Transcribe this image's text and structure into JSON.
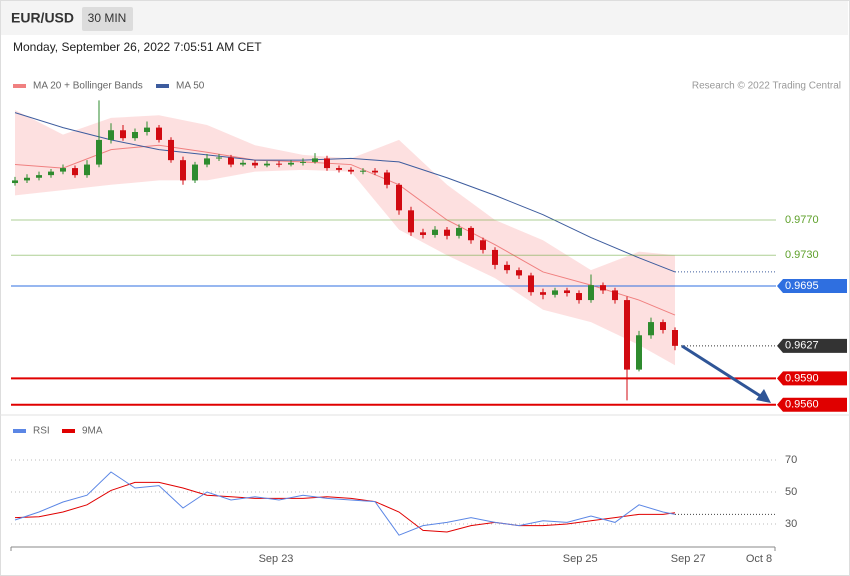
{
  "header": {
    "symbol": "EUR/USD",
    "interval": "30 MIN",
    "timestamp": "Monday, September 26, 2022 7:05:51 AM CET"
  },
  "chart_data": [
    {
      "type": "candlestick",
      "source": "Research © 2022 Trading Central",
      "xlim": [
        -0.5,
        63.5
      ],
      "ylim": [
        0.955,
        0.9915
      ],
      "up_color": "#2e8b2e",
      "down_color": "#d10a11",
      "open": [
        0.9812,
        0.9815,
        0.9818,
        0.9821,
        0.9825,
        0.9829,
        0.9821,
        0.9833,
        0.9861,
        0.9872,
        0.9863,
        0.987,
        0.9875,
        0.9861,
        0.9838,
        0.9815,
        0.9833,
        0.984,
        0.9841,
        0.9833,
        0.9835,
        0.9832,
        0.9834,
        0.9833,
        0.9835,
        0.9836,
        0.984,
        0.9829,
        0.9827,
        0.9825,
        0.9826,
        0.9824,
        0.981,
        0.9781,
        0.9756,
        0.9753,
        0.9759,
        0.9752,
        0.9761,
        0.9747,
        0.9736,
        0.9719,
        0.9713,
        0.9707,
        0.9688,
        0.9685,
        0.969,
        0.9687,
        0.9679,
        0.9696,
        0.969,
        0.9679,
        0.96,
        0.9639,
        0.9654,
        0.9645
      ],
      "high": [
        0.9819,
        0.9822,
        0.9825,
        0.9828,
        0.9833,
        0.9832,
        0.9838,
        0.9906,
        0.988,
        0.9878,
        0.9874,
        0.9882,
        0.9878,
        0.9864,
        0.9842,
        0.9836,
        0.9845,
        0.9845,
        0.9844,
        0.9838,
        0.9838,
        0.9837,
        0.9837,
        0.9838,
        0.984,
        0.9846,
        0.9843,
        0.9832,
        0.983,
        0.9829,
        0.9829,
        0.9827,
        0.9812,
        0.9785,
        0.976,
        0.9763,
        0.9762,
        0.9765,
        0.9763,
        0.975,
        0.9739,
        0.9723,
        0.9716,
        0.971,
        0.9692,
        0.9693,
        0.9693,
        0.969,
        0.9708,
        0.9699,
        0.9693,
        0.9683,
        0.9644,
        0.9659,
        0.9657,
        0.9648
      ],
      "low": [
        0.9809,
        0.9812,
        0.9815,
        0.9818,
        0.9822,
        0.9818,
        0.9818,
        0.983,
        0.9857,
        0.986,
        0.986,
        0.9866,
        0.9858,
        0.9835,
        0.981,
        0.9812,
        0.983,
        0.9837,
        0.983,
        0.9831,
        0.9829,
        0.983,
        0.983,
        0.9831,
        0.9832,
        0.9834,
        0.9826,
        0.9824,
        0.9822,
        0.9822,
        0.9821,
        0.9806,
        0.9776,
        0.9752,
        0.9749,
        0.975,
        0.9748,
        0.9749,
        0.9743,
        0.9732,
        0.9714,
        0.9709,
        0.9703,
        0.9684,
        0.968,
        0.9682,
        0.9683,
        0.9675,
        0.9676,
        0.9686,
        0.9675,
        0.9565,
        0.9598,
        0.9635,
        0.9641,
        0.9622
      ],
      "close": [
        0.9815,
        0.9818,
        0.9821,
        0.9825,
        0.9829,
        0.9821,
        0.9833,
        0.9861,
        0.9872,
        0.9863,
        0.987,
        0.9875,
        0.9861,
        0.9838,
        0.9815,
        0.9833,
        0.984,
        0.9841,
        0.9833,
        0.9835,
        0.9832,
        0.9834,
        0.9833,
        0.9835,
        0.9836,
        0.984,
        0.9829,
        0.9827,
        0.9825,
        0.9826,
        0.9824,
        0.981,
        0.9781,
        0.9756,
        0.9753,
        0.9759,
        0.9752,
        0.9761,
        0.9747,
        0.9736,
        0.9719,
        0.9713,
        0.9707,
        0.9688,
        0.9685,
        0.969,
        0.9687,
        0.9679,
        0.9696,
        0.969,
        0.9679,
        0.96,
        0.9639,
        0.9654,
        0.9645,
        0.9627
      ],
      "overlays": [
        {
          "name": "MA 20 + Bollinger Bands",
          "color": "#f08080",
          "band_color": "#fcd3d3",
          "x": [
            0,
            4,
            8,
            12,
            16,
            20,
            24,
            28,
            32,
            36,
            40,
            44,
            48,
            52,
            55
          ],
          "values": [
            0.9833,
            0.9829,
            0.985,
            0.9855,
            0.9847,
            0.9838,
            0.9836,
            0.9833,
            0.981,
            0.977,
            0.9742,
            0.9711,
            0.9696,
            0.9679,
            0.9662
          ],
          "upper": [
            0.9895,
            0.9867,
            0.9886,
            0.9889,
            0.9878,
            0.9855,
            0.9844,
            0.984,
            0.9861,
            0.981,
            0.977,
            0.9747,
            0.9713,
            0.9734,
            0.973
          ],
          "lower": [
            0.9798,
            0.9804,
            0.981,
            0.9815,
            0.9815,
            0.9825,
            0.9827,
            0.9825,
            0.9759,
            0.973,
            0.9704,
            0.9668,
            0.9654,
            0.9628,
            0.9605
          ]
        },
        {
          "name": "MA 50",
          "color": "#3d5c9e",
          "x": [
            0,
            4,
            8,
            12,
            16,
            20,
            24,
            28,
            32,
            36,
            40,
            44,
            48,
            52,
            55
          ],
          "values": [
            0.9892,
            0.9875,
            0.9861,
            0.985,
            0.9844,
            0.9838,
            0.9838,
            0.984,
            0.9836,
            0.9818,
            0.9798,
            0.9776,
            0.975,
            0.9727,
            0.9711
          ]
        }
      ],
      "levels": [
        {
          "value": 0.977,
          "label": "0.9770",
          "color": "#5ea02a",
          "boxed": false,
          "dotted": false
        },
        {
          "value": 0.973,
          "label": "0.9730",
          "color": "#5ea02a",
          "boxed": false,
          "dotted": false
        },
        {
          "value": 0.9695,
          "label": "0.9695",
          "color": "#2f6fe0",
          "boxed": true,
          "dotted": false
        },
        {
          "value": 0.9627,
          "label": "0.9627",
          "color": "#333333",
          "boxed": true,
          "dotted": true
        },
        {
          "value": 0.959,
          "label": "0.9590",
          "color": "#e00000",
          "boxed": true,
          "dotted": false
        },
        {
          "value": 0.956,
          "label": "0.9560",
          "color": "#e00000",
          "boxed": true,
          "dotted": false
        }
      ]
    },
    {
      "type": "line",
      "xlim": [
        -0.5,
        63.5
      ],
      "ylim": [
        15,
        95
      ],
      "yticks": [
        30,
        50,
        70
      ],
      "grid": true,
      "xticks": [
        {
          "value": 21.75,
          "label": "Sep 23"
        },
        {
          "value": 47.1,
          "label": "Sep 25"
        },
        {
          "value": 56.1,
          "label": "Sep 27"
        },
        {
          "value": 62,
          "label": "Oct 8"
        }
      ],
      "x": [
        0,
        2,
        4,
        6,
        8,
        10,
        12,
        14,
        16,
        18,
        20,
        22,
        24,
        26,
        28,
        30,
        32,
        34,
        36,
        38,
        40,
        42,
        44,
        46,
        48,
        50,
        52,
        54,
        55
      ],
      "series": [
        {
          "name": "RSI",
          "color": "#5b86e5",
          "values": [
            32.5,
            37.5,
            43.75,
            48,
            62.5,
            52.5,
            54,
            40,
            50,
            45,
            47,
            45,
            48,
            46,
            45,
            44,
            23,
            29,
            31,
            34,
            31,
            29,
            32,
            31,
            35,
            31,
            42,
            37.5,
            36
          ]
        },
        {
          "name": "9MA",
          "color": "#e00000",
          "values": [
            34,
            34.5,
            37.5,
            42,
            51,
            56,
            56,
            52.5,
            48,
            47,
            46,
            46,
            46,
            47,
            46,
            44,
            37.5,
            26,
            25,
            29,
            31,
            29,
            29,
            30,
            32,
            34,
            36,
            36,
            37
          ]
        }
      ]
    }
  ]
}
